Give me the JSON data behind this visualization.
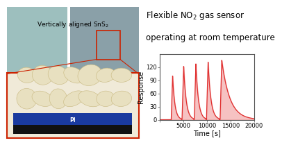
{
  "xlabel": "Time [s]",
  "ylabel": "Response",
  "xlim": [
    0,
    20000
  ],
  "ylim": [
    0,
    150
  ],
  "yticks": [
    0,
    30,
    60,
    90,
    120
  ],
  "xticks": [
    0,
    5000,
    10000,
    15000,
    20000
  ],
  "line_color": "#e03030",
  "fill_color": "#f09090",
  "peaks": [
    {
      "t_start": 2400,
      "t_peak": 2700,
      "peak_val": 100,
      "t_end": 4600
    },
    {
      "t_start": 4700,
      "t_peak": 5050,
      "peak_val": 122,
      "t_end": 7200
    },
    {
      "t_start": 7300,
      "t_peak": 7650,
      "peak_val": 128,
      "t_end": 9800
    },
    {
      "t_start": 9900,
      "t_peak": 10250,
      "peak_val": 132,
      "t_end": 12600
    },
    {
      "t_start": 12800,
      "t_peak": 13150,
      "peak_val": 136,
      "t_end": 20000
    }
  ],
  "background_color": "#ffffff",
  "label_fontsize": 7,
  "title_fontsize": 8.5,
  "tick_fontsize": 6,
  "red_border": "#cc2200",
  "photo_top_left": "#9dbfbe",
  "photo_top_right": "#8aa0a8",
  "snS2_bg": "#f0ead8",
  "blue_substrate": "#1a3a9f",
  "black_base": "#111111"
}
